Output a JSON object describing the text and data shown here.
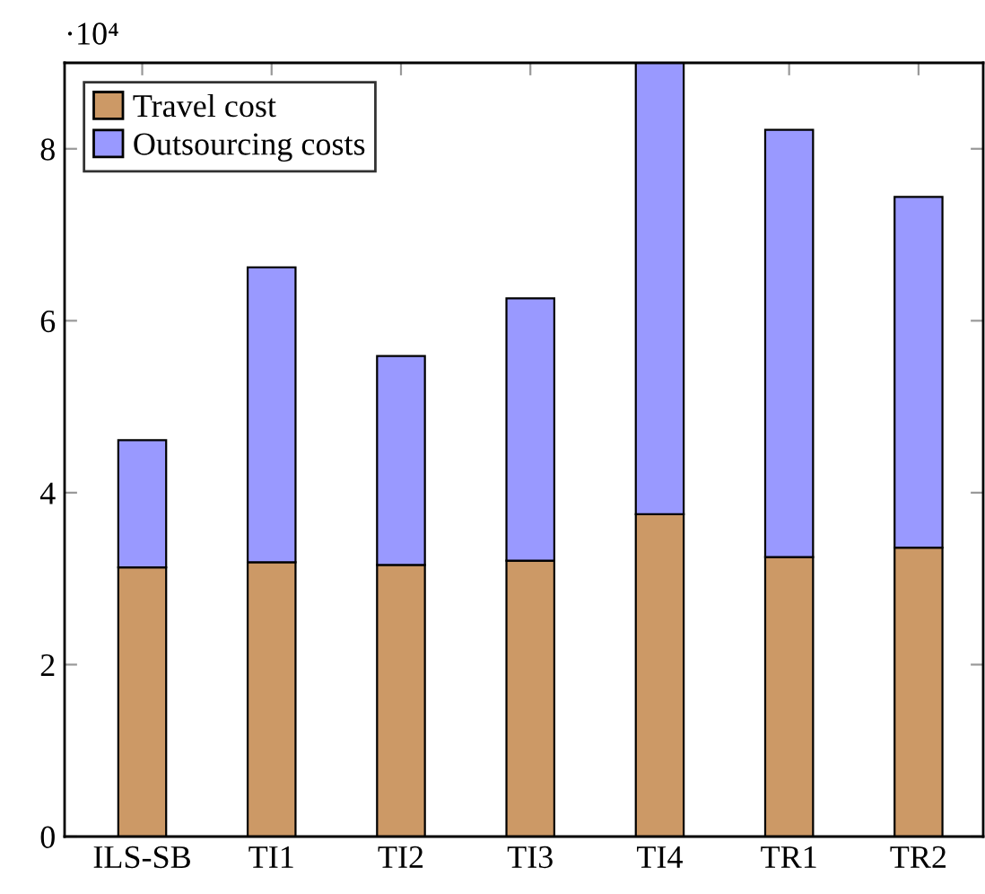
{
  "chart_data": {
    "type": "bar",
    "stacked": true,
    "categories": [
      "ILS-SB",
      "TI1",
      "TI2",
      "TI3",
      "TI4",
      "TR1",
      "TR2"
    ],
    "series": [
      {
        "name": "Travel cost",
        "color": "#cc9966",
        "values": [
          3.13,
          3.19,
          3.16,
          3.21,
          3.75,
          3.25,
          3.36
        ]
      },
      {
        "name": "Outsourcing costs",
        "color": "#9999ff",
        "values": [
          1.48,
          3.43,
          2.43,
          3.05,
          5.25,
          4.97,
          4.08
        ]
      }
    ],
    "ylim": [
      0,
      9
    ],
    "yticks": [
      0,
      2,
      4,
      6,
      8
    ],
    "annotations": [
      "·10⁴"
    ],
    "grid": false,
    "legend": "top left"
  }
}
